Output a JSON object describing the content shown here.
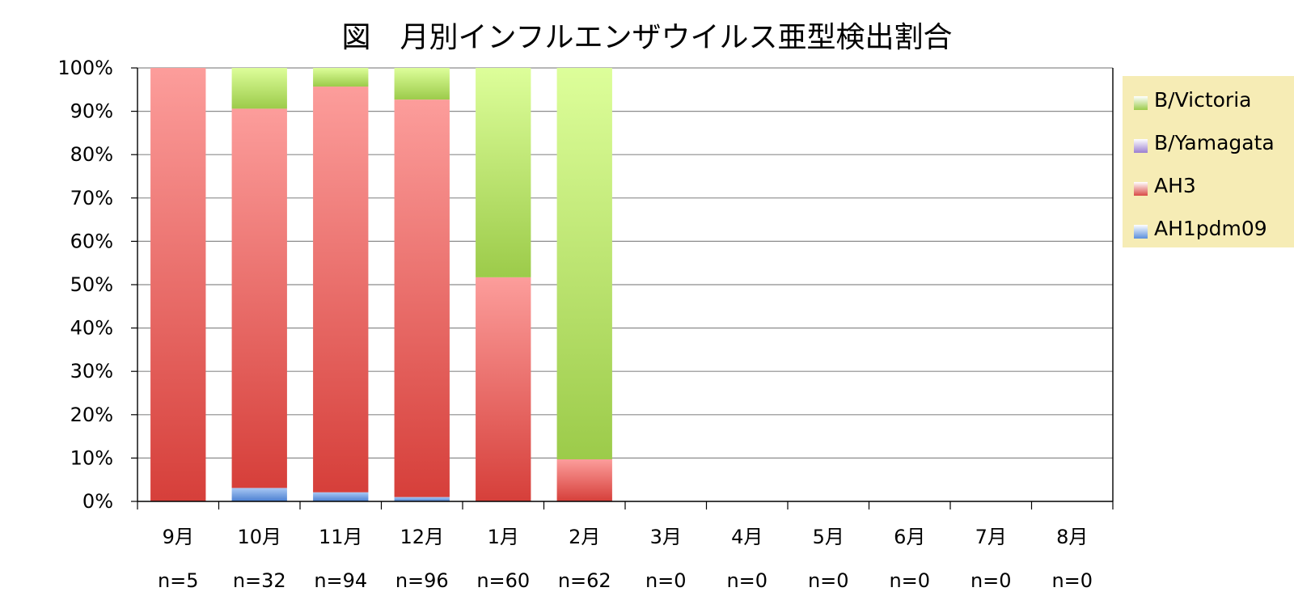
{
  "chart_data": {
    "type": "bar",
    "stacked": true,
    "percent": true,
    "title": "図　月別インフルエンザウイルス亜型検出割合",
    "xlabel": "",
    "ylabel": "",
    "ylim": [
      0,
      100
    ],
    "yticks": [
      "0%",
      "10%",
      "20%",
      "30%",
      "40%",
      "50%",
      "60%",
      "70%",
      "80%",
      "90%",
      "100%"
    ],
    "grid": true,
    "legend_position": "right",
    "categories": [
      "9月",
      "10月",
      "11月",
      "12月",
      "1月",
      "2月",
      "3月",
      "4月",
      "5月",
      "6月",
      "7月",
      "8月"
    ],
    "n_labels": [
      "n=5",
      "n=32",
      "n=94",
      "n=96",
      "n=60",
      "n=62",
      "n=0",
      "n=0",
      "n=0",
      "n=0",
      "n=0",
      "n=0"
    ],
    "series": [
      {
        "name": "AH1pdm09",
        "color": "#5b8fdc",
        "values": [
          0,
          3.1,
          2.1,
          1.0,
          0,
          0,
          0,
          0,
          0,
          0,
          0,
          0
        ]
      },
      {
        "name": "AH3",
        "color": "#d94a45",
        "values": [
          100,
          87.5,
          93.6,
          91.7,
          51.7,
          9.7,
          0,
          0,
          0,
          0,
          0,
          0
        ]
      },
      {
        "name": "B/Yamagata",
        "color": "#9b7fd0",
        "values": [
          0,
          0,
          0,
          0,
          0,
          0,
          0,
          0,
          0,
          0,
          0,
          0
        ]
      },
      {
        "name": "B/Victoria",
        "color": "#9ccb4a",
        "values": [
          0,
          9.4,
          4.3,
          7.3,
          48.3,
          90.3,
          0,
          0,
          0,
          0,
          0,
          0
        ]
      }
    ],
    "legend_order": [
      "B/Victoria",
      "B/Yamagata",
      "AH3",
      "AH1pdm09"
    ]
  }
}
